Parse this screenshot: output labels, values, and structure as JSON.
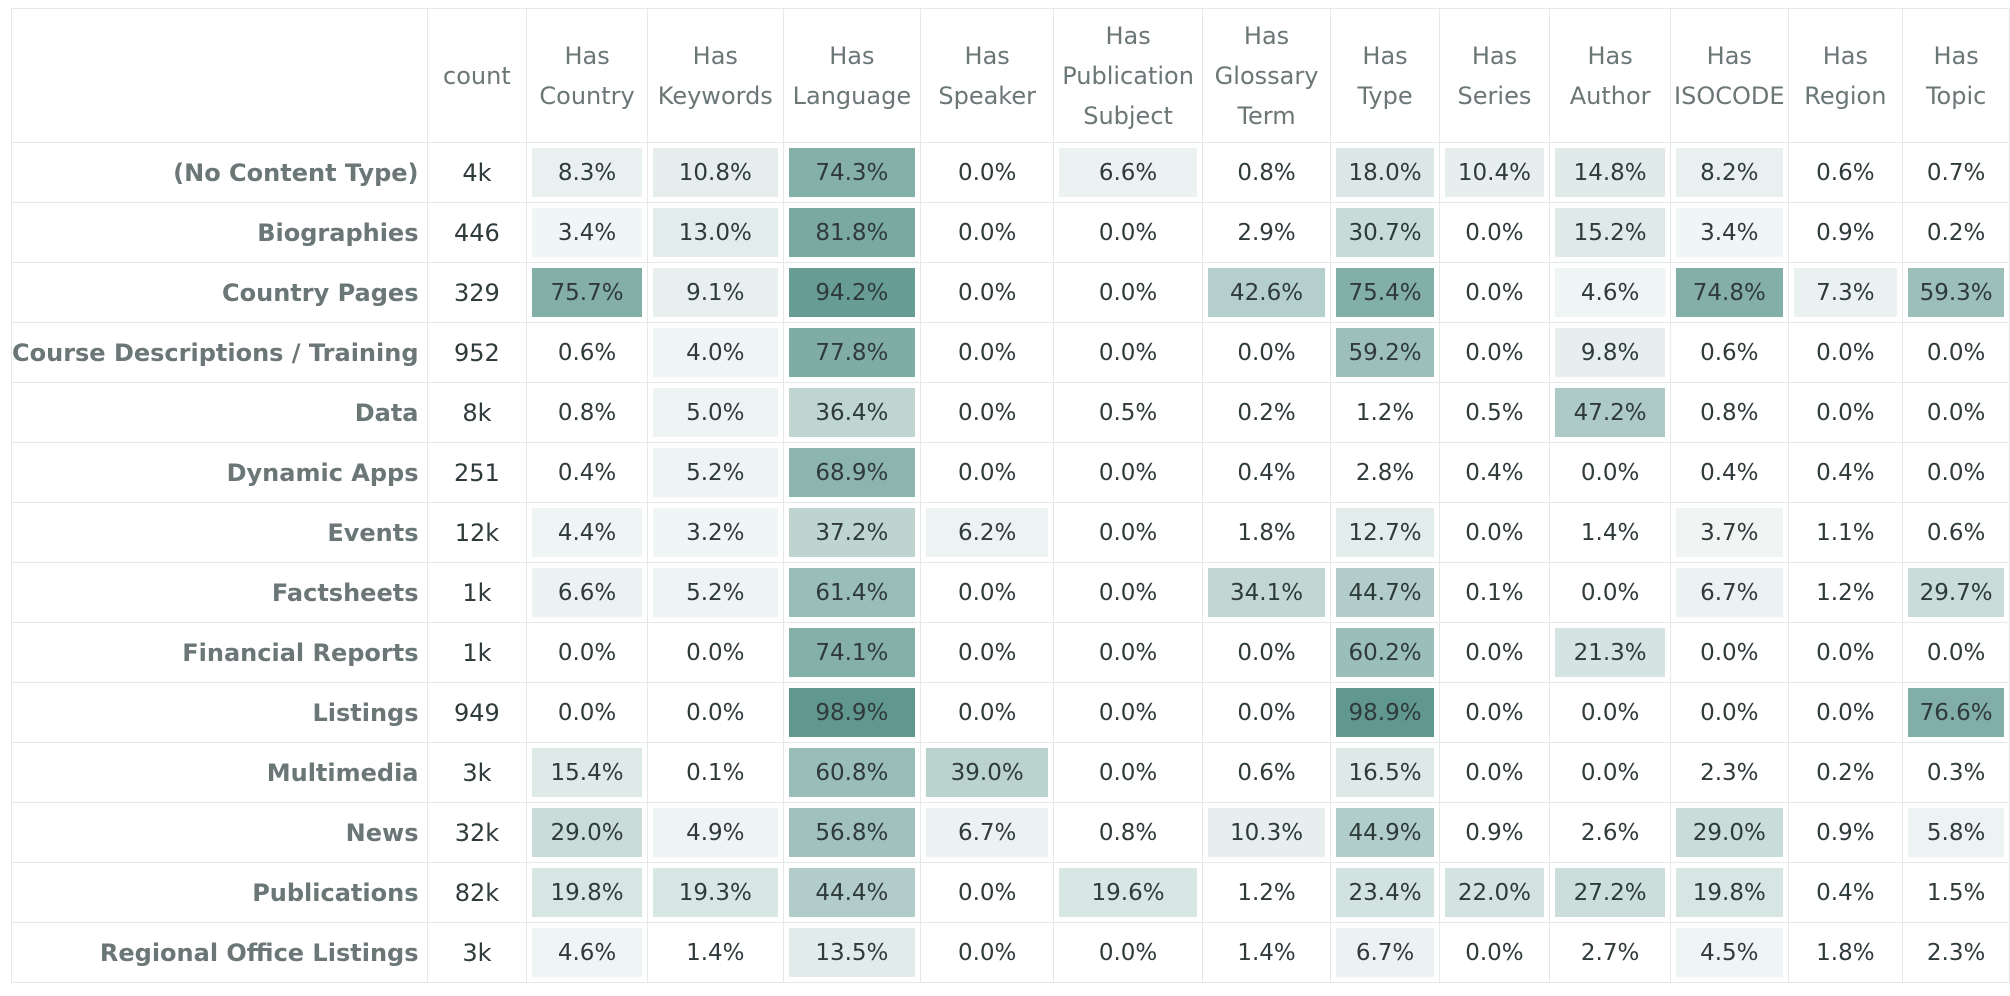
{
  "chart_data": {
    "type": "heatmap",
    "color": "#5e978f",
    "columns": [
      "count",
      "Has Country",
      "Has Keywords",
      "Has Language",
      "Has Speaker",
      "Has Publication Subject",
      "Has Glossary Term",
      "Has Type",
      "Has Series",
      "Has Author",
      "Has ISOCODE",
      "Has Region",
      "Has Topic"
    ],
    "column_lines": [
      [
        "count"
      ],
      [
        "Has",
        "Country"
      ],
      [
        "Has",
        "Keywords"
      ],
      [
        "Has",
        "Language"
      ],
      [
        "Has",
        "Speaker"
      ],
      [
        "Has",
        "Publication",
        "Subject"
      ],
      [
        "Has",
        "Glossary",
        "Term"
      ],
      [
        "Has",
        "Type"
      ],
      [
        "Has",
        "Series"
      ],
      [
        "Has",
        "Author"
      ],
      [
        "Has",
        "ISOCODE"
      ],
      [
        "Has",
        "Region"
      ],
      [
        "Has",
        "Topic"
      ]
    ],
    "rows": [
      {
        "label": "(No Content Type)",
        "count": "4k",
        "values": [
          8.3,
          10.8,
          74.3,
          0.0,
          6.6,
          0.8,
          18.0,
          10.4,
          14.8,
          8.2,
          0.6,
          0.7
        ]
      },
      {
        "label": "Biographies",
        "count": "446",
        "values": [
          3.4,
          13.0,
          81.8,
          0.0,
          0.0,
          2.9,
          30.7,
          0.0,
          15.2,
          3.4,
          0.9,
          0.2
        ]
      },
      {
        "label": "Country Pages",
        "count": "329",
        "values": [
          75.7,
          9.1,
          94.2,
          0.0,
          0.0,
          42.6,
          75.4,
          0.0,
          4.6,
          74.8,
          7.3,
          59.3
        ]
      },
      {
        "label": "Course Descriptions / Training",
        "count": "952",
        "values": [
          0.6,
          4.0,
          77.8,
          0.0,
          0.0,
          0.0,
          59.2,
          0.0,
          9.8,
          0.6,
          0.0,
          0.0
        ]
      },
      {
        "label": "Data",
        "count": "8k",
        "values": [
          0.8,
          5.0,
          36.4,
          0.0,
          0.5,
          0.2,
          1.2,
          0.5,
          47.2,
          0.8,
          0.0,
          0.0
        ]
      },
      {
        "label": "Dynamic Apps",
        "count": "251",
        "values": [
          0.4,
          5.2,
          68.9,
          0.0,
          0.0,
          0.4,
          2.8,
          0.4,
          0.0,
          0.4,
          0.4,
          0.0
        ]
      },
      {
        "label": "Events",
        "count": "12k",
        "values": [
          4.4,
          3.2,
          37.2,
          6.2,
          0.0,
          1.8,
          12.7,
          0.0,
          1.4,
          3.7,
          1.1,
          0.6
        ]
      },
      {
        "label": "Factsheets",
        "count": "1k",
        "values": [
          6.6,
          5.2,
          61.4,
          0.0,
          0.0,
          34.1,
          44.7,
          0.1,
          0.0,
          6.7,
          1.2,
          29.7
        ]
      },
      {
        "label": "Financial Reports",
        "count": "1k",
        "values": [
          0.0,
          0.0,
          74.1,
          0.0,
          0.0,
          0.0,
          60.2,
          0.0,
          21.3,
          0.0,
          0.0,
          0.0
        ]
      },
      {
        "label": "Listings",
        "count": "949",
        "values": [
          0.0,
          0.0,
          98.9,
          0.0,
          0.0,
          0.0,
          98.9,
          0.0,
          0.0,
          0.0,
          0.0,
          76.6
        ]
      },
      {
        "label": "Multimedia",
        "count": "3k",
        "values": [
          15.4,
          0.1,
          60.8,
          39.0,
          0.0,
          0.6,
          16.5,
          0.0,
          0.0,
          2.3,
          0.2,
          0.3
        ]
      },
      {
        "label": "News",
        "count": "32k",
        "values": [
          29.0,
          4.9,
          56.8,
          6.7,
          0.8,
          10.3,
          44.9,
          0.9,
          2.6,
          29.0,
          0.9,
          5.8
        ]
      },
      {
        "label": "Publications",
        "count": "82k",
        "values": [
          19.8,
          19.3,
          44.4,
          0.0,
          19.6,
          1.2,
          23.4,
          22.0,
          27.2,
          19.8,
          0.4,
          1.5
        ]
      },
      {
        "label": "Regional Office Listings",
        "count": "3k",
        "values": [
          4.6,
          1.4,
          13.5,
          0.0,
          0.0,
          1.4,
          6.7,
          0.0,
          2.7,
          4.5,
          1.8,
          2.3
        ]
      }
    ]
  }
}
